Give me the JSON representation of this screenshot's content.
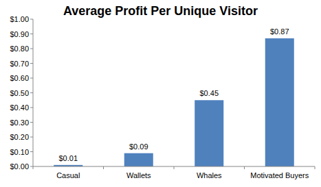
{
  "chart_data": {
    "type": "bar",
    "title": "Average Profit Per Unique Visitor",
    "categories": [
      "Casual",
      "Wallets",
      "Whales",
      "Motivated Buyers"
    ],
    "values": [
      0.01,
      0.09,
      0.45,
      0.87
    ],
    "value_labels": [
      "$0.01",
      "$0.09",
      "$0.45",
      "$0.87"
    ],
    "data_labels": true,
    "color": "#4f81bd",
    "ylim": [
      0,
      1
    ],
    "yticks": [
      {
        "value": 0,
        "label": "$0.00"
      },
      {
        "value": 0.1,
        "label": "$0.10"
      },
      {
        "value": 0.2,
        "label": "$0.20"
      },
      {
        "value": 0.3,
        "label": "$0.30"
      },
      {
        "value": 0.4,
        "label": "$0.40"
      },
      {
        "value": 0.5,
        "label": "$0.50"
      },
      {
        "value": 0.6,
        "label": "$0.60"
      },
      {
        "value": 0.7,
        "label": "$0.70"
      },
      {
        "value": 0.8,
        "label": "$0.80"
      },
      {
        "value": 0.9,
        "label": "$0.90"
      },
      {
        "value": 1,
        "label": "$1.00"
      }
    ],
    "grid": false
  }
}
